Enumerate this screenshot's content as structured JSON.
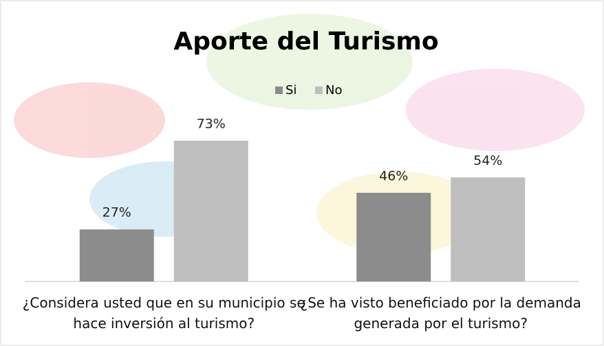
{
  "chart_data": {
    "type": "bar",
    "title": "Aporte del Turismo",
    "categories": [
      "¿Considera usted que en su municipio se hace inversión al turismo?",
      "¿Se ha visto beneficiado por la demanda generada por el turismo?"
    ],
    "series": [
      {
        "name": "Si",
        "color": "#8c8c8c",
        "values": [
          27,
          46
        ],
        "value_labels": [
          "27%",
          "46%"
        ]
      },
      {
        "name": "No",
        "color": "#bfbfbf",
        "values": [
          73,
          54
        ],
        "value_labels": [
          "73%",
          "54%"
        ]
      }
    ],
    "legend": "top"
  }
}
